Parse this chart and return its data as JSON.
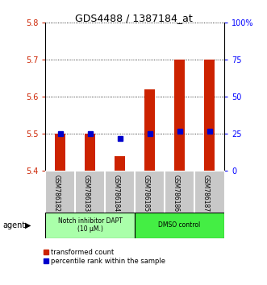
{
  "title": "GDS4488 / 1387184_at",
  "samples": [
    "GSM786182",
    "GSM786183",
    "GSM786184",
    "GSM786185",
    "GSM786186",
    "GSM786187"
  ],
  "red_values": [
    5.5,
    5.5,
    5.44,
    5.62,
    5.7,
    5.7
  ],
  "blue_values": [
    25,
    25,
    22,
    25,
    27,
    27
  ],
  "ylim_left": [
    5.4,
    5.8
  ],
  "ylim_right": [
    0,
    100
  ],
  "yticks_left": [
    5.4,
    5.5,
    5.6,
    5.7,
    5.8
  ],
  "yticks_right": [
    0,
    25,
    50,
    75,
    100
  ],
  "ytick_labels_right": [
    "0",
    "25",
    "50",
    "75",
    "100%"
  ],
  "group1_label": "Notch inhibitor DAPT\n(10 μM.)",
  "group2_label": "DMSO control",
  "group1_color": "#AAFFAA",
  "group2_color": "#44EE44",
  "red_color": "#CC2200",
  "blue_color": "#0000CC",
  "bar_bottom": 5.4,
  "bar_width": 0.35,
  "legend_red": "transformed count",
  "legend_blue": "percentile rank within the sample",
  "agent_label": "agent",
  "tick_area_color": "#C8C8C8"
}
